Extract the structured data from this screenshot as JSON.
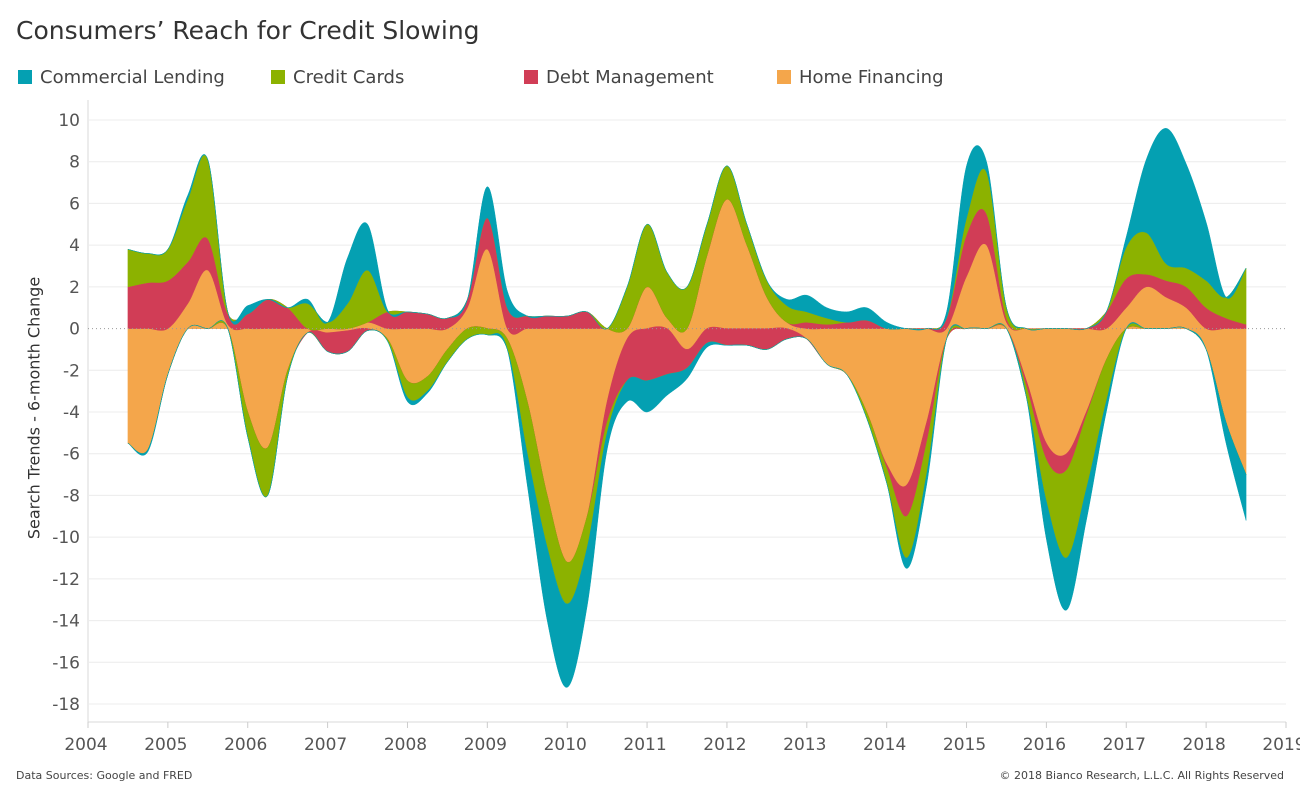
{
  "title": "Consumers’ Reach for Credit Slowing",
  "footer": {
    "source": "Data Sources: Google and FRED",
    "copyright": "© 2018 Bianco Research, L.L.C. All Rights Reserved"
  },
  "legend": [
    {
      "label": "Commercial Lending",
      "color": "#04a0b2"
    },
    {
      "label": "Credit Cards",
      "color": "#8cb200"
    },
    {
      "label": "Debt Management",
      "color": "#d13d56"
    },
    {
      "label": "Home Financing",
      "color": "#f4a64b"
    }
  ],
  "chart_data": {
    "type": "area",
    "stacked": true,
    "title": "Consumers’ Reach for Credit Slowing",
    "xlabel": "",
    "ylabel": "Search Trends - 6-month Change",
    "xlim": [
      2004,
      2019
    ],
    "ylim": [
      -18,
      10
    ],
    "x_ticks": [
      "2004",
      "2005",
      "2006",
      "2007",
      "2008",
      "2009",
      "2010",
      "2011",
      "2012",
      "2013",
      "2014",
      "2015",
      "2016",
      "2017",
      "2018",
      "2019"
    ],
    "y_ticks": [
      "10",
      "8",
      "6",
      "4",
      "2",
      "0",
      "-2",
      "-4",
      "-6",
      "-8",
      "-10",
      "-12",
      "-14",
      "-16",
      "-18"
    ],
    "grid": true,
    "legend_position": "top",
    "x": [
      2004.5,
      2004.75,
      2005.0,
      2005.25,
      2005.5,
      2005.75,
      2006.0,
      2006.25,
      2006.5,
      2006.75,
      2007.0,
      2007.25,
      2007.5,
      2007.75,
      2008.0,
      2008.25,
      2008.5,
      2008.75,
      2009.0,
      2009.25,
      2009.5,
      2009.75,
      2010.0,
      2010.25,
      2010.5,
      2010.75,
      2011.0,
      2011.25,
      2011.5,
      2011.75,
      2012.0,
      2012.25,
      2012.5,
      2012.75,
      2013.0,
      2013.25,
      2013.5,
      2013.75,
      2014.0,
      2014.25,
      2014.5,
      2014.75,
      2015.0,
      2015.25,
      2015.5,
      2015.75,
      2016.0,
      2016.25,
      2016.5,
      2016.75,
      2017.0,
      2017.25,
      2017.5,
      2017.75,
      2018.0,
      2018.25,
      2018.5
    ],
    "series": [
      {
        "name": "Home Financing",
        "color": "#f4a64b",
        "values": [
          -5.5,
          -5.8,
          -2.2,
          1.2,
          2.8,
          0.2,
          -4.0,
          -5.7,
          -2.0,
          -0.2,
          -0.2,
          -0.1,
          0.3,
          -0.5,
          -2.5,
          -2.3,
          -1.0,
          1.0,
          3.8,
          -0.5,
          -3.5,
          -8.0,
          -11.2,
          -9.0,
          -3.5,
          -0.5,
          2.0,
          0.5,
          -1.0,
          3.5,
          6.2,
          4.0,
          1.5,
          0.3,
          -0.5,
          -1.7,
          -2.2,
          -4.0,
          -6.5,
          -7.5,
          -4.5,
          -0.5,
          2.5,
          4.0,
          0.3,
          -2.5,
          -5.5,
          -6.0,
          -4.0,
          -1.5,
          1.0,
          2.0,
          1.5,
          1.0,
          -1.0,
          -4.5,
          -7.0
        ]
      },
      {
        "name": "Debt Management",
        "color": "#d13d56",
        "values": [
          2.0,
          2.2,
          2.3,
          2.0,
          1.5,
          0.5,
          0.7,
          1.4,
          1.0,
          0.0,
          -0.9,
          -1.0,
          -0.1,
          0.8,
          0.8,
          0.7,
          0.5,
          0.4,
          1.5,
          1.0,
          0.6,
          0.6,
          0.6,
          0.8,
          -1.0,
          -2.0,
          -2.5,
          -2.2,
          -0.9,
          -0.7,
          -0.8,
          -0.8,
          -1.0,
          -0.5,
          0.3,
          0.2,
          0.3,
          0.4,
          -0.2,
          -1.5,
          -1.0,
          0.5,
          2.0,
          1.5,
          0.2,
          -0.3,
          -0.8,
          -0.8,
          -0.2,
          0.8,
          1.4,
          0.6,
          0.8,
          1.0,
          1.0,
          0.5,
          0.2
        ]
      },
      {
        "name": "Credit Cards",
        "color": "#8cb200",
        "values": [
          1.8,
          1.4,
          1.5,
          3.0,
          3.8,
          0.1,
          -1.2,
          -2.3,
          -0.3,
          1.2,
          0.3,
          1.2,
          2.5,
          -0.1,
          -0.8,
          -0.7,
          -0.6,
          -0.5,
          -0.3,
          -0.5,
          -2.5,
          -2.5,
          -2.0,
          -1.5,
          -0.5,
          2.0,
          3.0,
          2.2,
          2.0,
          1.5,
          1.6,
          1.0,
          0.8,
          0.8,
          0.5,
          0.3,
          0.0,
          -0.3,
          -0.7,
          -2.0,
          -1.5,
          0.0,
          0.8,
          2.0,
          0.5,
          -0.5,
          -2.0,
          -4.2,
          -3.5,
          -2.0,
          1.5,
          2.0,
          0.8,
          0.9,
          1.3,
          1.0,
          2.7
        ]
      },
      {
        "name": "Commercial Lending",
        "color": "#04a0b2",
        "values": [
          0.0,
          -0.1,
          0.0,
          0.2,
          0.0,
          0.0,
          0.4,
          0.0,
          0.0,
          0.2,
          0.0,
          2.2,
          2.2,
          0.1,
          -0.2,
          -0.1,
          0.0,
          0.0,
          1.5,
          0.8,
          -1.5,
          -3.5,
          -4.0,
          -2.8,
          -0.8,
          -1.0,
          -1.5,
          -1.0,
          -0.5,
          -0.2,
          0.0,
          0.0,
          0.0,
          0.3,
          0.8,
          0.5,
          0.5,
          0.6,
          0.3,
          -0.5,
          -0.5,
          0.3,
          2.5,
          0.5,
          0.0,
          0.0,
          -1.8,
          -2.5,
          -1.5,
          -0.5,
          0.5,
          3.5,
          6.5,
          5.0,
          2.8,
          -1.0,
          -2.2
        ]
      }
    ]
  }
}
